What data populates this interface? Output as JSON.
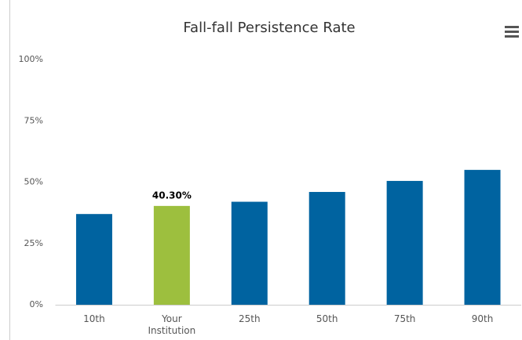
{
  "chart_data": {
    "type": "bar",
    "title": "Fall-fall Persistence Rate",
    "categories": [
      "10th",
      "Your Institution",
      "25th",
      "50th",
      "75th",
      "90th"
    ],
    "values": [
      37,
      40.3,
      42,
      46,
      50.5,
      55
    ],
    "value_labels": [
      null,
      "40.30%",
      null,
      null,
      null,
      null
    ],
    "colors": [
      "#0063a0",
      "#9dbf3e",
      "#0063a0",
      "#0063a0",
      "#0063a0",
      "#0063a0"
    ],
    "ylim": [
      0,
      100
    ],
    "yticks": [
      {
        "value": 0,
        "label": "0%"
      },
      {
        "value": 25,
        "label": "25%"
      },
      {
        "value": 50,
        "label": "50%"
      },
      {
        "value": 75,
        "label": "75%"
      },
      {
        "value": 100,
        "label": "100%"
      }
    ],
    "grid": false
  }
}
